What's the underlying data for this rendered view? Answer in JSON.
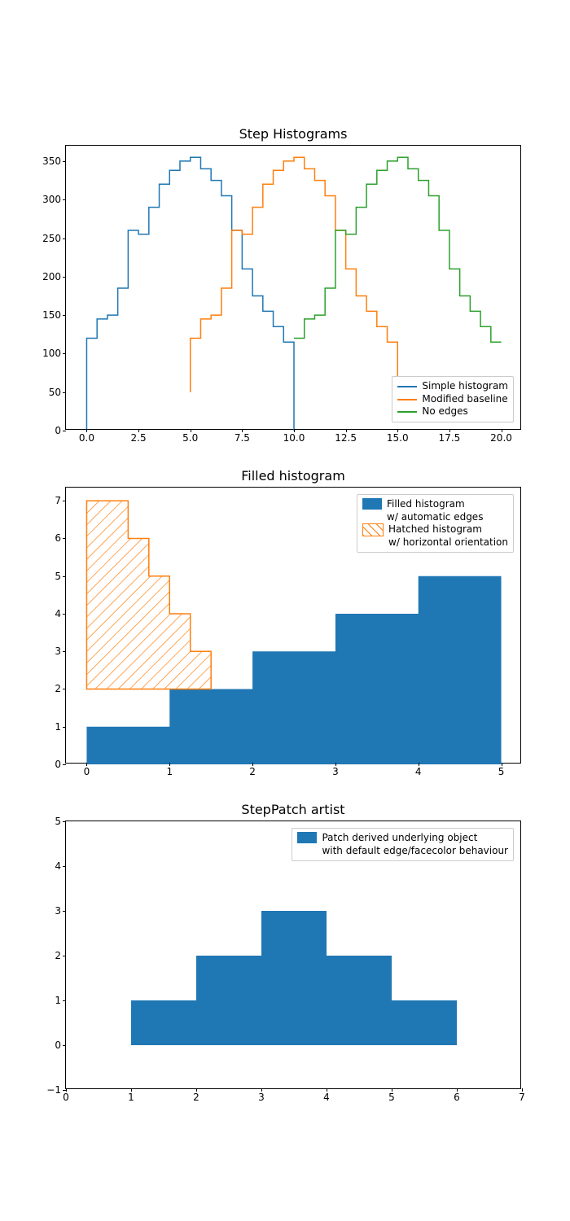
{
  "colors": {
    "blue": "#1f77b4",
    "orange": "#ff7f0e",
    "green": "#2ca02c",
    "black": "#000000",
    "legend_border": "#cccccc",
    "bg": "#ffffff"
  },
  "typography": {
    "title_fontsize": 16,
    "tick_fontsize": 12,
    "legend_fontsize": 12
  },
  "chart1": {
    "type": "step-histogram",
    "title": "Step Histograms",
    "xlim": [
      -1,
      21
    ],
    "ylim": [
      0,
      370
    ],
    "xticks": [
      0.0,
      2.5,
      5.0,
      7.5,
      10.0,
      12.5,
      15.0,
      17.5,
      20.0
    ],
    "xtick_labels": [
      "0.0",
      "2.5",
      "5.0",
      "7.5",
      "10.0",
      "12.5",
      "15.0",
      "17.5",
      "20.0"
    ],
    "yticks": [
      0,
      50,
      100,
      150,
      200,
      250,
      300,
      350
    ],
    "ytick_labels": [
      "0",
      "50",
      "100",
      "150",
      "200",
      "250",
      "300",
      "350"
    ],
    "series": [
      {
        "label": "Simple histogram",
        "color": "#1f77b4",
        "baseline": 0,
        "edges": [
          0,
          0.5,
          1,
          1.5,
          2,
          2.5,
          3,
          3.5,
          4,
          4.5,
          5,
          5.5,
          6,
          6.5,
          7,
          7.5,
          8,
          8.5,
          9,
          9.5,
          10
        ],
        "values": [
          120,
          145,
          150,
          185,
          260,
          255,
          290,
          320,
          338,
          350,
          355,
          340,
          325,
          305,
          260,
          210,
          175,
          155,
          135,
          115
        ]
      },
      {
        "label": "Modified baseline",
        "color": "#ff7f0e",
        "baseline": 50,
        "edges": [
          5,
          5.5,
          6,
          6.5,
          7,
          7.5,
          8,
          8.5,
          9,
          9.5,
          10,
          10.5,
          11,
          11.5,
          12,
          12.5,
          13,
          13.5,
          14,
          14.5,
          15
        ],
        "values": [
          120,
          145,
          150,
          185,
          260,
          255,
          290,
          320,
          338,
          350,
          355,
          340,
          325,
          305,
          260,
          210,
          175,
          155,
          135,
          115
        ]
      },
      {
        "label": "No edges",
        "color": "#2ca02c",
        "baseline": null,
        "edges": [
          10,
          10.5,
          11,
          11.5,
          12,
          12.5,
          13,
          13.5,
          14,
          14.5,
          15,
          15.5,
          16,
          16.5,
          17,
          17.5,
          18,
          18.5,
          19,
          19.5,
          20
        ],
        "values": [
          120,
          145,
          150,
          185,
          260,
          255,
          290,
          320,
          338,
          350,
          355,
          340,
          325,
          305,
          260,
          210,
          175,
          155,
          135,
          115
        ]
      }
    ],
    "legend_pos": "lower-right"
  },
  "chart2": {
    "type": "filled-histogram",
    "title": "Filled histogram",
    "xlim": [
      -0.25,
      5.25
    ],
    "ylim": [
      0,
      7.35
    ],
    "xticks": [
      0,
      1,
      2,
      3,
      4,
      5
    ],
    "xtick_labels": [
      "0",
      "1",
      "2",
      "3",
      "4",
      "5"
    ],
    "yticks": [
      0,
      1,
      2,
      3,
      4,
      5,
      6,
      7
    ],
    "ytick_labels": [
      "0",
      "1",
      "2",
      "3",
      "4",
      "5",
      "6",
      "7"
    ],
    "filled": {
      "label_line1": "Filled histogram",
      "label_line2": "w/ automatic edges",
      "color": "#1f77b4",
      "edges": [
        0,
        1,
        2,
        3,
        4,
        5
      ],
      "values": [
        1,
        2,
        3,
        4,
        5
      ]
    },
    "hatched": {
      "label_line1": "Hatched histogram",
      "label_line2": "w/ horizontal orientation",
      "color": "#ff7f0e",
      "hatch": "//",
      "orientation": "horizontal",
      "h_edges": [
        2,
        3,
        4,
        5,
        6,
        7
      ],
      "h_values": [
        1.5,
        1.25,
        1.0,
        0.75,
        0.5
      ]
    },
    "legend_pos": "upper-right"
  },
  "chart3": {
    "type": "step-patch",
    "title": "StepPatch artist",
    "xlim": [
      0,
      7
    ],
    "ylim": [
      -1,
      5
    ],
    "xticks": [
      0,
      1,
      2,
      3,
      4,
      5,
      6,
      7
    ],
    "xtick_labels": [
      "0",
      "1",
      "2",
      "3",
      "4",
      "5",
      "6",
      "7"
    ],
    "yticks": [
      -1,
      0,
      1,
      2,
      3,
      4,
      5
    ],
    "ytick_labels": [
      "−1",
      "0",
      "1",
      "2",
      "3",
      "4",
      "5"
    ],
    "patch": {
      "label_line1": "Patch derived underlying object",
      "label_line2": "with default edge/facecolor behaviour",
      "color": "#1f77b4",
      "edges": [
        1,
        2,
        3,
        4,
        5,
        6
      ],
      "values": [
        1,
        2,
        3,
        2,
        1
      ]
    },
    "legend_pos": "upper-right"
  }
}
